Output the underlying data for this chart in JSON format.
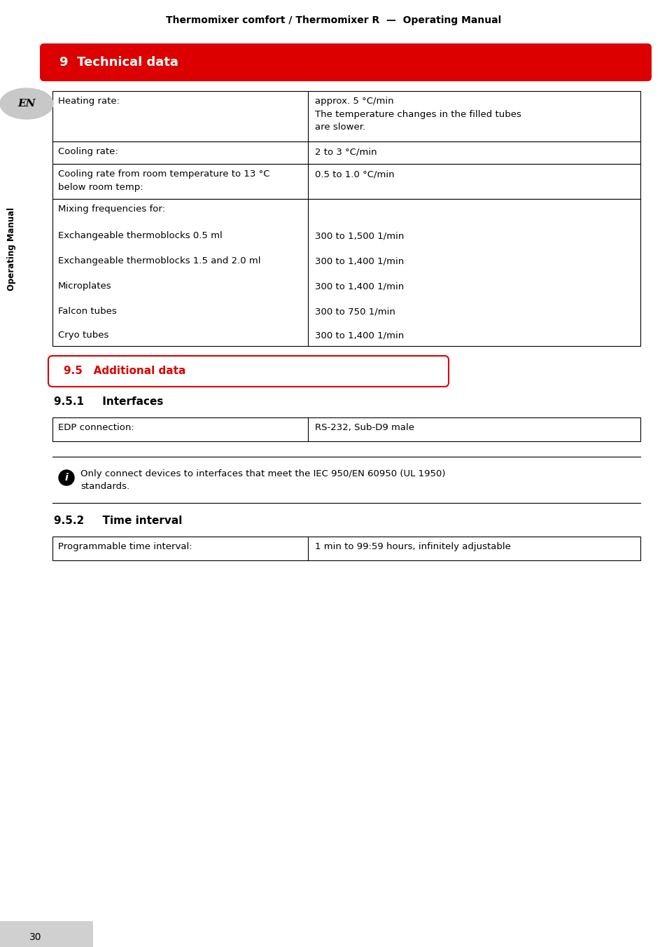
{
  "header_text": "Thermomixer comfort / Thermomixer R  —  Operating Manual",
  "section9_title": "9  Technical data",
  "section95_title": "9.5   Additional data",
  "section951_title": "9.5.1     Interfaces",
  "section952_title": "9.5.2     Time interval",
  "sidebar_text": "Operating Manual",
  "sidebar_lang": "EN",
  "page_number": "30",
  "info_text": "Only connect devices to interfaces that meet the IEC 950/EN 60950 (UL 1950)\nstandards.",
  "bg_color": "#ffffff",
  "red_color": "#dd0000",
  "text_color": "#000000"
}
